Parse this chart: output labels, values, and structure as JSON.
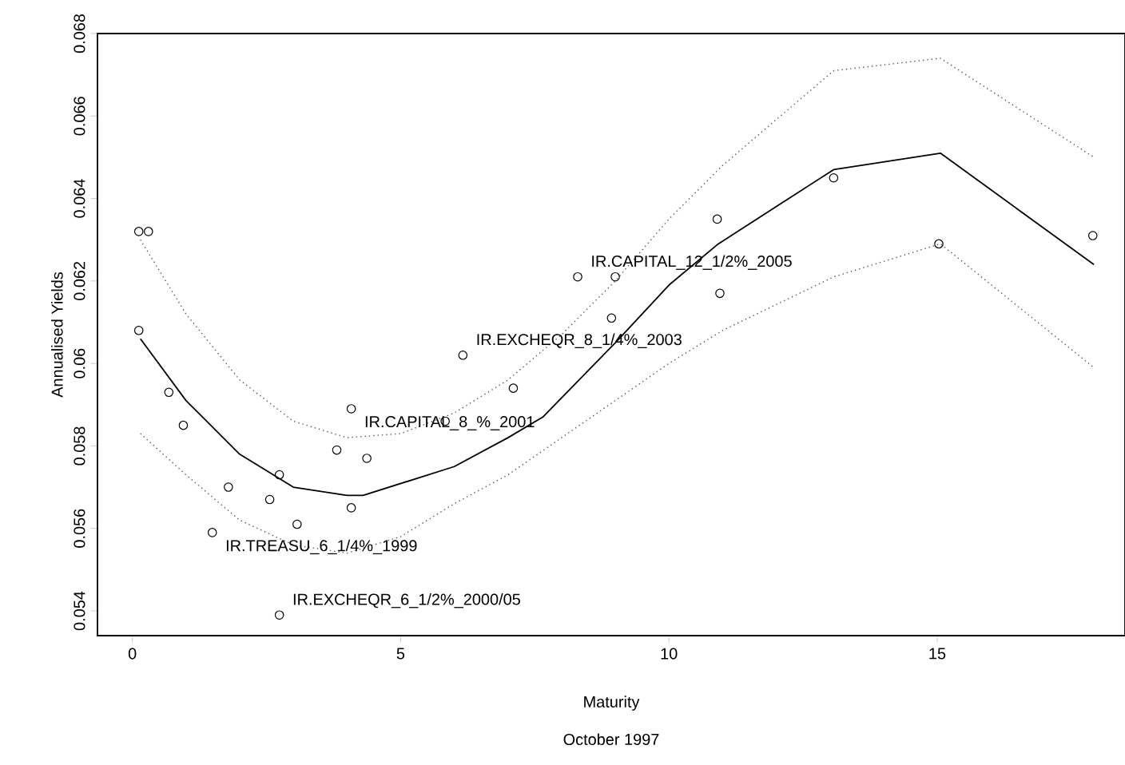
{
  "chart_data": {
    "type": "scatter",
    "xlabel": "Maturity",
    "ylabel": "Annualised Yields",
    "xlim": [
      -0.65,
      18.5
    ],
    "ylim": [
      0.0534,
      0.068
    ],
    "xticks": [
      0,
      5,
      10,
      15
    ],
    "yticks": [
      0.054,
      0.056,
      0.058,
      0.06,
      0.062,
      0.064,
      0.066,
      0.068
    ],
    "series": [
      {
        "type": "scatter",
        "marker": "circle",
        "color": "#000000",
        "x": [
          0.12,
          0.3,
          0.12,
          6.16,
          0.68,
          0.95,
          4.08,
          5.83,
          7.1,
          3.81,
          4.37,
          1.79,
          2.74,
          2.56,
          4.08,
          1.49,
          3.07,
          2.74,
          8.3,
          9.0,
          8.93,
          10.9,
          10.95,
          13.07,
          15.03,
          17.9
        ],
        "values": [
          0.0632,
          0.0632,
          0.0608,
          0.0602,
          0.0593,
          0.0585,
          0.0589,
          0.0586,
          0.0594,
          0.0579,
          0.0577,
          0.057,
          0.0573,
          0.0567,
          0.0565,
          0.0559,
          0.0561,
          0.0539,
          0.0621,
          0.0621,
          0.0611,
          0.0635,
          0.0617,
          0.0645,
          0.0629,
          0.0631
        ]
      },
      {
        "type": "line",
        "line_style": "solid",
        "color": "#000000",
        "x": [
          0.15,
          1,
          2,
          3,
          4,
          4.3,
          6,
          7,
          7.65,
          9,
          10,
          10.92,
          13.07,
          15.06,
          17.92
        ],
        "values": [
          0.0606,
          0.0591,
          0.0578,
          0.057,
          0.0568,
          0.0568,
          0.0575,
          0.0582,
          0.0587,
          0.0605,
          0.0619,
          0.0629,
          0.0647,
          0.0651,
          0.0624
        ]
      },
      {
        "type": "line",
        "line_style": "dotted",
        "color": "#555555",
        "x": [
          0.15,
          1,
          2,
          3,
          4,
          5,
          6,
          7,
          8,
          9,
          10,
          11,
          13.07,
          15.06,
          17.92
        ],
        "values": [
          0.063,
          0.0612,
          0.0596,
          0.0586,
          0.0582,
          0.0583,
          0.0588,
          0.0596,
          0.0607,
          0.062,
          0.0635,
          0.0648,
          0.0671,
          0.0674,
          0.065
        ]
      },
      {
        "type": "line",
        "line_style": "dotted",
        "color": "#555555",
        "x": [
          0.15,
          1,
          2,
          3,
          4,
          5,
          6,
          7,
          8,
          9,
          10,
          11,
          13.07,
          15.06,
          17.92
        ],
        "values": [
          0.0583,
          0.0573,
          0.0562,
          0.0556,
          0.0554,
          0.0558,
          0.0566,
          0.0573,
          0.0582,
          0.0591,
          0.06,
          0.0608,
          0.0621,
          0.0629,
          0.0599
        ]
      }
    ],
    "annotations": [
      {
        "text": "IR.TREASU_6_1/4%_1999",
        "x": 1.49,
        "y": 0.0559
      },
      {
        "text": "IR.EXCHEQR_6_1/2%_2000/05",
        "x": 2.74,
        "y": 0.0539
      },
      {
        "text": "IR.CAPITAL_8_%_2001",
        "x": 4.08,
        "y": 0.0589
      },
      {
        "text": "IR.EXCHEQR_8_1/4%_2003",
        "x": 6.16,
        "y": 0.0602
      },
      {
        "text": "IR.CAPITAL_12_1/2%_2005",
        "x": 8.3,
        "y": 0.0621
      },
      "October 1997"
    ]
  }
}
